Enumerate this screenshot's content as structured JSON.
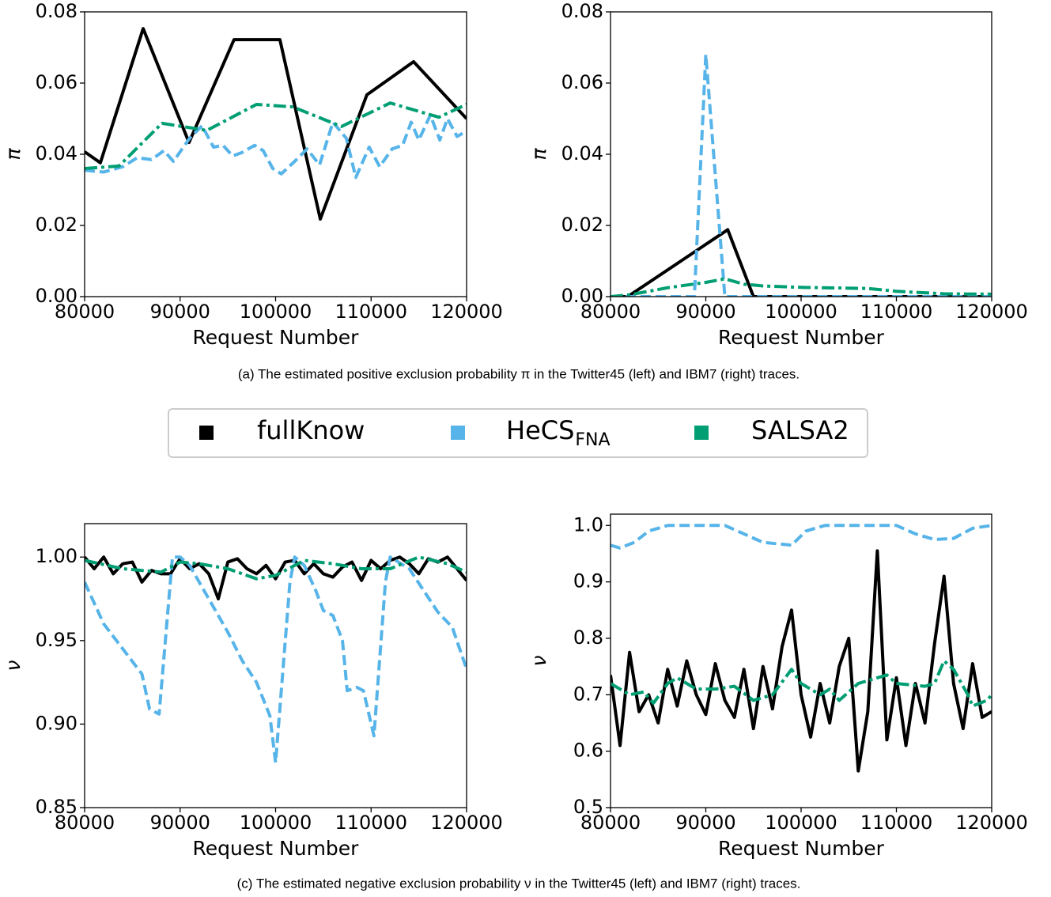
{
  "chart_data": [
    {
      "type": "line",
      "xlabel": "Request Number",
      "ylabel": "π",
      "xlim": [
        80000,
        120000
      ],
      "xticks": [
        80000,
        90000,
        100000,
        110000,
        120000
      ],
      "ylim": [
        0,
        0.08
      ],
      "yticks": [
        {
          "value": 0,
          "label": "0.00"
        },
        0.02,
        0.04,
        0.06,
        0.08
      ],
      "series": [
        {
          "color": "#000000",
          "style": "solid",
          "x": [
            80000,
            81650,
            86130,
            90930,
            95650,
            100450,
            104680,
            109560,
            114450,
            120000
          ],
          "values": [
            0.0407,
            0.0376,
            0.0753,
            0.0433,
            0.0722,
            0.0722,
            0.0218,
            0.0567,
            0.066,
            0.05
          ]
        },
        {
          "color": "#56b4e9",
          "style": "dashed",
          "x": [
            80000,
            82000,
            84000,
            85500,
            87000,
            88300,
            89300,
            91000,
            92300,
            93500,
            94500,
            95500,
            96500,
            97800,
            98700,
            99700,
            100600,
            102000,
            103300,
            104600,
            106000,
            107400,
            108400,
            109800,
            110900,
            112200,
            113300,
            114200,
            115000,
            116200,
            117200,
            118000,
            119000,
            120000
          ],
          "values": [
            0.0355,
            0.035,
            0.0365,
            0.039,
            0.0385,
            0.041,
            0.038,
            0.0445,
            0.048,
            0.042,
            0.0425,
            0.0395,
            0.0405,
            0.0425,
            0.041,
            0.036,
            0.0345,
            0.038,
            0.0415,
            0.037,
            0.049,
            0.0445,
            0.0335,
            0.042,
            0.0365,
            0.0415,
            0.0425,
            0.049,
            0.044,
            0.051,
            0.044,
            0.05,
            0.045,
            0.0465
          ]
        },
        {
          "color": "#009e73",
          "style": "dashdot",
          "x": [
            80000,
            83600,
            88100,
            92800,
            98000,
            101800,
            106900,
            112000,
            117100,
            120000
          ],
          "values": [
            0.036,
            0.0367,
            0.0487,
            0.0467,
            0.054,
            0.0533,
            0.0478,
            0.0544,
            0.0504,
            0.054
          ]
        }
      ]
    },
    {
      "type": "line",
      "xlabel": "Request Number",
      "ylabel": "π",
      "xlim": [
        80000,
        120000
      ],
      "xticks": [
        80000,
        90000,
        100000,
        110000,
        120000
      ],
      "ylim": [
        0,
        0.08
      ],
      "yticks": [
        {
          "value": 0,
          "label": "0.00"
        },
        0.02,
        0.04,
        0.06,
        0.08
      ],
      "series": [
        {
          "color": "#000000",
          "style": "solid",
          "x": [
            80000,
            81800,
            92300,
            95000,
            120000
          ],
          "values": [
            0,
            0,
            0.0188,
            0,
            0
          ]
        },
        {
          "color": "#56b4e9",
          "style": "dashed",
          "x": [
            80000,
            88800,
            90000,
            92000,
            120000
          ],
          "values": [
            0,
            0,
            0.068,
            0,
            0
          ]
        },
        {
          "color": "#009e73",
          "style": "dashdot",
          "x": [
            80000,
            82000,
            86000,
            90000,
            92000,
            94000,
            96000,
            100000,
            107000,
            110000,
            115000,
            120000
          ],
          "values": [
            0,
            0.0005,
            0.0025,
            0.004,
            0.005,
            0.0035,
            0.003,
            0.0026,
            0.0023,
            0.0015,
            0.0008,
            0.0007
          ]
        }
      ]
    },
    {
      "type": "line",
      "xlabel": "Request Number",
      "ylabel": "ν",
      "xlim": [
        80000,
        120000
      ],
      "xticks": [
        80000,
        90000,
        100000,
        110000,
        120000
      ],
      "ylim": [
        0.85,
        1.02
      ],
      "yticks": [
        0.85,
        {
          "value": 0.9,
          "label": "0.90"
        },
        0.95,
        {
          "value": 1,
          "label": "1.00"
        }
      ],
      "series": [
        {
          "color": "#000000",
          "style": "solid",
          "x": [
            80000,
            81000,
            82000,
            83000,
            84000,
            85000,
            86000,
            87000,
            88000,
            89000,
            90000,
            91000,
            92000,
            93000,
            94000,
            95000,
            96000,
            97000,
            98000,
            99000,
            100000,
            101000,
            102000,
            103000,
            104000,
            105000,
            106000,
            107000,
            108000,
            109000,
            110000,
            111000,
            112000,
            113000,
            114000,
            115000,
            116000,
            117000,
            118000,
            119000,
            120000
          ],
          "values": [
            1.0,
            0.993,
            1.0,
            0.99,
            0.996,
            0.997,
            0.985,
            0.992,
            0.99,
            0.99,
            0.999,
            0.993,
            0.996,
            0.99,
            0.975,
            0.997,
            0.999,
            0.993,
            0.99,
            0.995,
            0.987,
            0.997,
            0.998,
            0.99,
            0.996,
            0.99,
            0.988,
            0.994,
            0.997,
            0.986,
            0.998,
            0.993,
            0.998,
            1.0,
            0.996,
            0.99,
            0.999,
            0.997,
            1.0,
            0.993,
            0.986
          ]
        },
        {
          "color": "#56b4e9",
          "style": "dashed",
          "x": [
            80000,
            82000,
            84000,
            86000,
            86800,
            87800,
            89200,
            90000,
            91000,
            92000,
            93500,
            95000,
            96500,
            98000,
            99400,
            100000,
            101500,
            102000,
            103000,
            104200,
            105000,
            106000,
            107000,
            107500,
            108500,
            109200,
            110300,
            111500,
            112000,
            114000,
            115500,
            117000,
            118500,
            120000
          ],
          "values": [
            0.985,
            0.96,
            0.945,
            0.93,
            0.909,
            0.906,
            1.0,
            1.0,
            0.995,
            0.985,
            0.97,
            0.955,
            0.938,
            0.925,
            0.905,
            0.877,
            0.985,
            1.0,
            0.995,
            0.98,
            0.968,
            0.965,
            0.95,
            0.92,
            0.922,
            0.92,
            0.893,
            0.985,
            1.0,
            0.993,
            0.98,
            0.967,
            0.958,
            0.933
          ]
        },
        {
          "color": "#009e73",
          "style": "dashdot",
          "x": [
            80000,
            84000,
            88000,
            90000,
            92000,
            95000,
            98000,
            100000,
            103000,
            106000,
            109000,
            112000,
            115000,
            118000,
            120000
          ],
          "values": [
            0.998,
            0.993,
            0.991,
            0.997,
            0.996,
            0.993,
            0.987,
            0.989,
            0.998,
            0.996,
            0.993,
            0.993,
            1.0,
            0.996,
            0.991
          ]
        }
      ]
    },
    {
      "type": "line",
      "xlabel": "Request Number",
      "ylabel": "ν",
      "xlim": [
        80000,
        120000
      ],
      "xticks": [
        80000,
        90000,
        100000,
        110000,
        120000
      ],
      "ylim": [
        0.5,
        1.02
      ],
      "yticks": [
        0.5,
        0.6,
        0.7,
        0.8,
        0.9,
        {
          "value": 1,
          "label": "1.0"
        }
      ],
      "series": [
        {
          "color": "#000000",
          "style": "solid",
          "x": [
            80000,
            81000,
            82000,
            83000,
            84000,
            85000,
            86000,
            87000,
            88000,
            89000,
            90000,
            91000,
            92000,
            93000,
            94000,
            95000,
            96000,
            97000,
            98000,
            99000,
            100000,
            101000,
            102000,
            103000,
            104000,
            105000,
            106000,
            107000,
            108000,
            109000,
            110000,
            111000,
            112000,
            113000,
            114000,
            115000,
            116000,
            117000,
            118000,
            119000,
            120000
          ],
          "values": [
            0.735,
            0.61,
            0.775,
            0.67,
            0.7,
            0.65,
            0.745,
            0.68,
            0.76,
            0.7,
            0.665,
            0.755,
            0.69,
            0.66,
            0.745,
            0.64,
            0.75,
            0.675,
            0.785,
            0.85,
            0.7,
            0.625,
            0.72,
            0.65,
            0.75,
            0.8,
            0.565,
            0.67,
            0.955,
            0.62,
            0.73,
            0.61,
            0.72,
            0.65,
            0.79,
            0.91,
            0.72,
            0.64,
            0.755,
            0.66,
            0.67
          ]
        },
        {
          "color": "#56b4e9",
          "style": "dashed",
          "x": [
            80000,
            81000,
            82500,
            84000,
            86000,
            90000,
            92000,
            94000,
            96000,
            99000,
            100500,
            102500,
            106000,
            110000,
            112000,
            114000,
            116000,
            118000,
            120000
          ],
          "values": [
            0.965,
            0.96,
            0.97,
            0.99,
            1.0,
            1.0,
            1.0,
            0.985,
            0.97,
            0.965,
            0.99,
            1.0,
            1.0,
            1.0,
            0.985,
            0.975,
            0.977,
            0.995,
            1.0
          ]
        },
        {
          "color": "#009e73",
          "style": "dashdot",
          "x": [
            80000,
            82000,
            83500,
            84500,
            86000,
            87000,
            89000,
            91000,
            93000,
            95000,
            97000,
            99000,
            100000,
            102000,
            103000,
            104000,
            106000,
            109000,
            110000,
            113000,
            114000,
            115000,
            116000,
            117500,
            118000,
            119500,
            120000
          ],
          "values": [
            0.72,
            0.7,
            0.705,
            0.685,
            0.72,
            0.73,
            0.71,
            0.71,
            0.715,
            0.69,
            0.7,
            0.745,
            0.72,
            0.7,
            0.71,
            0.69,
            0.72,
            0.735,
            0.72,
            0.715,
            0.72,
            0.76,
            0.745,
            0.7,
            0.68,
            0.69,
            0.7
          ]
        }
      ]
    }
  ],
  "legend": [
    {
      "name": "fullKnow",
      "color": "#000000"
    },
    {
      "name": "HeCS",
      "name_sub": "FNA",
      "color": "#56b4e9"
    },
    {
      "name": "SALSA2",
      "color": "#009e73"
    }
  ],
  "captions": [
    "(a) The estimated positive exclusion probability π in the Twitter45 (left) and IBM7 (right) traces.",
    "(c) The estimated negative exclusion probability ν in the Twitter45 (left) and IBM7 (right) traces."
  ]
}
